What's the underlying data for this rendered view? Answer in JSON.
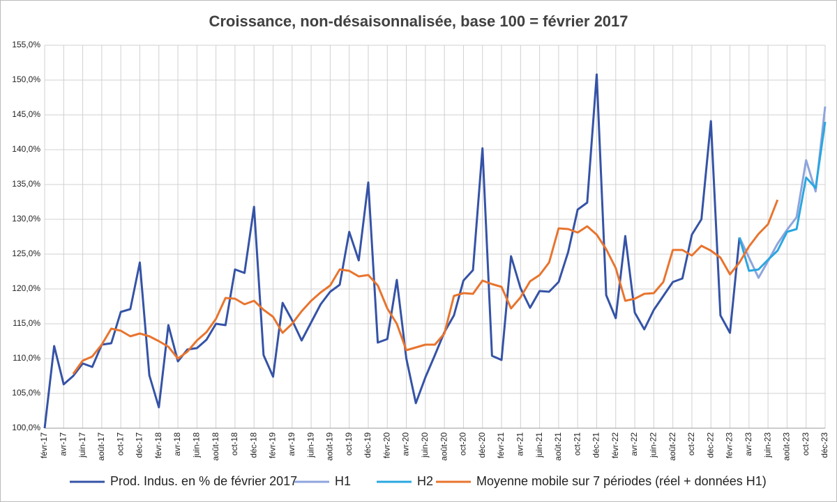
{
  "chart_data": {
    "type": "line",
    "title": "Croissance, non-désaisonnalisée, base 100 = février 2017",
    "categories": [
      "févr-17",
      null,
      "avr-17",
      null,
      "juin-17",
      null,
      "août-17",
      null,
      "oct-17",
      null,
      "déc-17",
      null,
      "févr-18",
      null,
      "avr-18",
      null,
      "juin-18",
      null,
      "août-18",
      null,
      "oct-18",
      null,
      "déc-18",
      null,
      "févr-19",
      null,
      "avr-19",
      null,
      "juin-19",
      null,
      "août-19",
      null,
      "oct-19",
      null,
      "déc-19",
      null,
      "févr-20",
      null,
      "avr-20",
      null,
      "juin-20",
      null,
      "août-20",
      null,
      "oct-20",
      null,
      "déc-20",
      null,
      "févr-21",
      null,
      "avr-21",
      null,
      "juin-21",
      null,
      "août-21",
      null,
      "oct-21",
      null,
      "déc-21",
      null,
      "févr-22",
      null,
      "avr-22",
      null,
      "juin-22",
      null,
      "août-22",
      null,
      "oct-22",
      null,
      "déc-22",
      null,
      "févr-23",
      null,
      "avr-23",
      null,
      "juin-23",
      null,
      "août-23",
      null,
      "oct-23",
      null,
      "déc-23"
    ],
    "series": [
      {
        "name": "Prod. Indus. en % de février 2017",
        "color": "#3553a6",
        "values": [
          100.0,
          111.8,
          106.3,
          107.5,
          109.3,
          108.8,
          112.0,
          112.2,
          116.7,
          117.1,
          123.8,
          107.6,
          103.0,
          114.8,
          109.6,
          111.3,
          111.5,
          112.7,
          115.0,
          114.8,
          122.8,
          122.3,
          131.8,
          110.5,
          107.4,
          118.0,
          115.5,
          112.6,
          115.2,
          117.8,
          119.6,
          120.6,
          128.2,
          124.1,
          135.3,
          112.3,
          112.8,
          121.3,
          110.0,
          103.6,
          107.3,
          110.5,
          113.8,
          116.2,
          121.2,
          122.7,
          140.2,
          110.4,
          109.8,
          124.7,
          120.1,
          117.3,
          119.7,
          119.6,
          121.0,
          125.3,
          131.4,
          132.4,
          150.8,
          119.1,
          115.8,
          127.6,
          116.6,
          114.2,
          117.0,
          119.0,
          121.0,
          121.5,
          127.8,
          130.0,
          144.1,
          116.2,
          113.7,
          127.4,
          null,
          null,
          null,
          null,
          null,
          null,
          null,
          null,
          null
        ]
      },
      {
        "name": "H1",
        "color": "#8ea4dc",
        "values": [
          null,
          null,
          null,
          null,
          null,
          null,
          null,
          null,
          null,
          null,
          null,
          null,
          null,
          null,
          null,
          null,
          null,
          null,
          null,
          null,
          null,
          null,
          null,
          null,
          null,
          null,
          null,
          null,
          null,
          null,
          null,
          null,
          null,
          null,
          null,
          null,
          null,
          null,
          null,
          null,
          null,
          null,
          null,
          null,
          null,
          null,
          null,
          null,
          null,
          null,
          null,
          null,
          null,
          null,
          null,
          null,
          null,
          null,
          null,
          null,
          null,
          null,
          null,
          null,
          null,
          null,
          null,
          null,
          null,
          null,
          null,
          null,
          null,
          127.4,
          124.5,
          121.6,
          124.0,
          126.5,
          128.5,
          130.3,
          138.5,
          134.0,
          146.2
        ]
      },
      {
        "name": "H2",
        "color": "#2aa7e0",
        "values": [
          null,
          null,
          null,
          null,
          null,
          null,
          null,
          null,
          null,
          null,
          null,
          null,
          null,
          null,
          null,
          null,
          null,
          null,
          null,
          null,
          null,
          null,
          null,
          null,
          null,
          null,
          null,
          null,
          null,
          null,
          null,
          null,
          null,
          null,
          null,
          null,
          null,
          null,
          null,
          null,
          null,
          null,
          null,
          null,
          null,
          null,
          null,
          null,
          null,
          null,
          null,
          null,
          null,
          null,
          null,
          null,
          null,
          null,
          null,
          null,
          null,
          null,
          null,
          null,
          null,
          null,
          null,
          null,
          null,
          null,
          null,
          null,
          null,
          127.4,
          122.6,
          122.8,
          124.2,
          125.5,
          128.2,
          128.6,
          136.0,
          134.5,
          144.0
        ]
      },
      {
        "name": "Moyenne mobile sur 7 périodes (réel + données H1)",
        "color": "#e8742e",
        "values": [
          null,
          null,
          null,
          107.8,
          109.7,
          110.3,
          112.0,
          114.3,
          114.0,
          113.2,
          113.6,
          113.2,
          112.5,
          111.7,
          110.0,
          111.0,
          112.6,
          113.8,
          115.7,
          118.7,
          118.6,
          117.8,
          118.3,
          117.0,
          116.0,
          113.7,
          115.0,
          116.8,
          118.3,
          119.5,
          120.5,
          122.8,
          122.6,
          121.8,
          122.0,
          120.5,
          117.2,
          115.0,
          111.2,
          111.6,
          112.0,
          112.0,
          113.6,
          119.0,
          119.4,
          119.3,
          121.2,
          120.7,
          120.3,
          117.2,
          118.8,
          121.1,
          122.0,
          123.8,
          128.7,
          128.6,
          128.1,
          129.0,
          127.8,
          125.7,
          123.0,
          118.3,
          118.6,
          119.3,
          119.4,
          121.0,
          125.6,
          125.6,
          124.8,
          126.2,
          125.5,
          124.5,
          122.1,
          123.8,
          126.1,
          127.9,
          129.3,
          132.8,
          null,
          null,
          null,
          null,
          null
        ]
      }
    ],
    "ylim": [
      100,
      155
    ],
    "yticks": [
      {
        "value": 100,
        "label": "100,0%"
      },
      {
        "value": 105,
        "label": "105,0%"
      },
      {
        "value": 110,
        "label": "110,0%"
      },
      {
        "value": 115,
        "label": "115,0%"
      },
      {
        "value": 120,
        "label": "120,0%"
      },
      {
        "value": 125,
        "label": "125,0%"
      },
      {
        "value": 130,
        "label": "130,0%"
      },
      {
        "value": 135,
        "label": "135,0%"
      },
      {
        "value": 140,
        "label": "140,0%"
      },
      {
        "value": 145,
        "label": "145,0%"
      },
      {
        "value": 150,
        "label": "150,0%"
      },
      {
        "value": 155,
        "label": "155,0%"
      }
    ],
    "grid": true,
    "legend": "bottom"
  }
}
